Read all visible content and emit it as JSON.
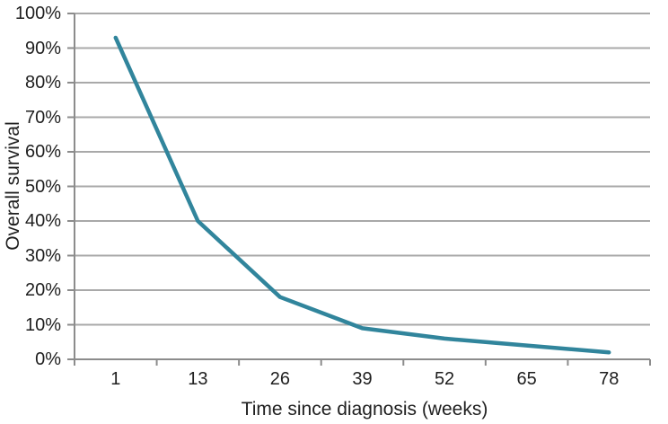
{
  "chart_data": {
    "type": "line",
    "title": "",
    "xlabel": "Time since diagnosis (weeks)",
    "ylabel": "Overall survival",
    "categories": [
      1,
      13,
      26,
      39,
      52,
      65,
      78
    ],
    "x_tick_labels": [
      "1",
      "13",
      "26",
      "39",
      "52",
      "65",
      "78"
    ],
    "series": [
      {
        "name": "Overall survival",
        "values": [
          93,
          40,
          18,
          9,
          6,
          4,
          2
        ]
      }
    ],
    "ylim": [
      0,
      100
    ],
    "y_tick_step": 10,
    "y_tick_labels": [
      "0%",
      "10%",
      "20%",
      "30%",
      "40%",
      "50%",
      "60%",
      "70%",
      "80%",
      "90%",
      "100%"
    ],
    "grid": "horizontal",
    "legend": "none",
    "colors": {
      "line": "#31859C",
      "gridline": "#A9A9A9",
      "axis": "#8C8C8C",
      "text": "#1F1F1F",
      "background": "#FFFFFF"
    }
  }
}
